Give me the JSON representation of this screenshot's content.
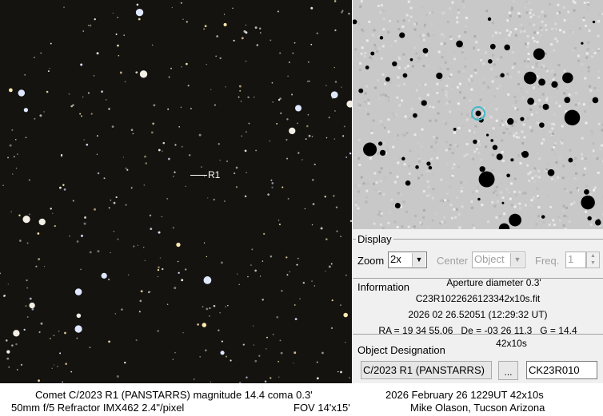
{
  "image": {
    "marker_label": "R1"
  },
  "display": {
    "title": "Display",
    "zoom_label": "Zoom",
    "zoom_value": "2x",
    "center_label": "Center",
    "center_value": "Object",
    "freq_label": "Freq.",
    "freq_value": "1"
  },
  "information": {
    "title": "Information",
    "aperture": "Aperture diameter 0.3'",
    "filename": "C23R1022626123342x10s.fit",
    "date": "2026 02 26.52051 (12:29:32 UT)",
    "coords": "RA = 19 34 55.06   De = -03 26 11.3   G = 14.4",
    "exposure": "42x10s"
  },
  "object": {
    "title": "Object Designation",
    "name": "C/2023 R1 (PANSTARRS)",
    "browse_label": "...",
    "code": "CK23R010"
  },
  "caption": {
    "line1_left": "Comet C/2023 R1 (PANSTARRS)  magnitude 14.4  coma 0.3'",
    "line1_right": "2026 February 26  1229UT  42x10s",
    "line2_left": "50mm f/5 Refractor  IMX462  2.4\"/pixel",
    "line2_mid": "FOV 14'x15'",
    "line2_right": "Mike Olason, Tucson Arizona"
  },
  "colors": {
    "target_circle": "#3fb8c8",
    "background_sky": "#151310"
  }
}
